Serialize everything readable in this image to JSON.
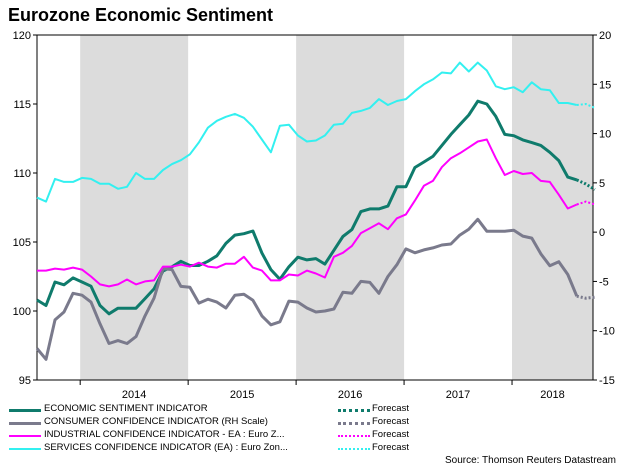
{
  "title": "Eurozone Economic Sentiment",
  "source": "Source: Thomson Reuters Datastream",
  "colors": {
    "esi": "#0f7b6c",
    "consumer": "#7a7a8c",
    "industrial": "#ff00ff",
    "services": "#33f0f0",
    "shade": "#dcdcdc"
  },
  "legend": [
    {
      "label": "ECONOMIC SENTIMENT INDICATOR",
      "forecast": "Forecast"
    },
    {
      "label": "CONSUMER CONFIDENCE INDICATOR (RH Scale)",
      "forecast": "Forecast"
    },
    {
      "label": "INDUSTRIAL CONFIDENCE INDICATOR - EA : Euro Z...",
      "forecast": "Forecast"
    },
    {
      "label": "SERVICES CONFIDENCE INDICATOR (EA) : Euro Zon...",
      "forecast": "Forecast"
    }
  ],
  "chart_data": {
    "type": "line",
    "title": "Eurozone Economic Sentiment",
    "x_start": 2013.6,
    "x_end": 2018.75,
    "years": [
      "2014",
      "2015",
      "2016",
      "2017",
      "2018"
    ],
    "left_axis": {
      "min": 95,
      "max": 120,
      "ticks": [
        "95",
        "100",
        "105",
        "110",
        "115",
        "120"
      ]
    },
    "right_axis": {
      "min": -15,
      "max": 20,
      "ticks": [
        "-15",
        "-10",
        "-5",
        "0",
        "5",
        "10",
        "15",
        "20"
      ]
    },
    "series": [
      {
        "name": "ECONOMIC SENTIMENT INDICATOR",
        "axis": "left",
        "key": "esi",
        "width": 3,
        "values": [
          100.8,
          100.4,
          102.1,
          101.9,
          102.4,
          102.1,
          101.8,
          100.4,
          99.8,
          100.2,
          100.2,
          100.2,
          100.9,
          101.6,
          102.9,
          103.2,
          103.6,
          103.3,
          103.3,
          103.6,
          104.0,
          104.9,
          105.5,
          105.6,
          105.8,
          104.2,
          103.0,
          102.3,
          103.2,
          103.9,
          103.7,
          103.8,
          103.4,
          104.4,
          105.4,
          105.9,
          107.2,
          107.4,
          107.4,
          107.6,
          109.0,
          109.0,
          110.4,
          110.8,
          111.2,
          112.0,
          112.8,
          113.5,
          114.2,
          115.2,
          115.0,
          114.1,
          112.8,
          112.7,
          112.4,
          112.2,
          112.0,
          111.5,
          110.9,
          109.7,
          109.5
        ],
        "forecast": [
          109.5,
          109.2,
          108.8
        ]
      },
      {
        "name": "CONSUMER CONFIDENCE INDICATOR (RH Scale)",
        "axis": "right",
        "key": "consumer",
        "width": 3,
        "values": [
          -11.8,
          -12.9,
          -8.9,
          -8.1,
          -6.2,
          -6.4,
          -7.1,
          -9.3,
          -11.3,
          -11.0,
          -11.3,
          -10.6,
          -8.5,
          -6.7,
          -3.7,
          -3.8,
          -5.5,
          -5.6,
          -7.2,
          -6.8,
          -7.1,
          -7.7,
          -6.4,
          -6.3,
          -6.9,
          -8.5,
          -9.4,
          -9.1,
          -7.0,
          -7.1,
          -7.7,
          -8.1,
          -8.0,
          -7.8,
          -6.1,
          -6.2,
          -5.0,
          -5.1,
          -6.2,
          -4.5,
          -3.3,
          -1.7,
          -2.1,
          -1.8,
          -1.6,
          -1.3,
          -1.2,
          -0.3,
          0.3,
          1.3,
          0.1,
          0.1,
          0.1,
          0.2,
          -0.4,
          -0.6,
          -2.2,
          -3.4,
          -3.0,
          -4.3,
          -6.5
        ],
        "forecast": [
          -6.5,
          -6.7,
          -6.6
        ]
      },
      {
        "name": "INDUSTRIAL CONFIDENCE INDICATOR - EA : Euro Z...",
        "axis": "right",
        "key": "industrial",
        "width": 2,
        "values": [
          -3.9,
          -3.9,
          -3.7,
          -3.8,
          -3.6,
          -3.8,
          -4.5,
          -5.3,
          -5.5,
          -5.3,
          -4.8,
          -5.3,
          -5.0,
          -4.9,
          -3.5,
          -3.5,
          -3.3,
          -3.5,
          -3.1,
          -3.5,
          -3.6,
          -3.2,
          -3.2,
          -2.5,
          -3.6,
          -3.9,
          -4.9,
          -4.9,
          -4.3,
          -4.4,
          -3.9,
          -4.2,
          -4.6,
          -2.5,
          -2.1,
          -1.4,
          -0.1,
          0.4,
          0.9,
          0.3,
          1.4,
          1.8,
          3.2,
          4.7,
          5.2,
          6.6,
          7.5,
          8.0,
          8.6,
          9.2,
          9.4,
          7.5,
          5.8,
          6.2,
          5.9,
          6.0,
          5.2,
          5.1,
          3.8,
          2.4,
          2.8
        ],
        "forecast": [
          2.8,
          3.1,
          2.8
        ]
      },
      {
        "name": "SERVICES CONFIDENCE INDICATOR (EA) : Euro Zon...",
        "axis": "right",
        "key": "services",
        "width": 2,
        "values": [
          3.5,
          3.1,
          5.4,
          5.1,
          5.1,
          5.5,
          5.4,
          4.9,
          4.9,
          4.4,
          4.6,
          6.0,
          5.4,
          5.4,
          6.3,
          6.9,
          7.3,
          7.9,
          9.1,
          10.6,
          11.3,
          11.7,
          12.0,
          11.6,
          10.7,
          9.4,
          8.1,
          10.8,
          10.9,
          9.8,
          9.2,
          9.3,
          9.8,
          10.9,
          11.0,
          12.1,
          12.3,
          12.6,
          13.5,
          12.9,
          13.3,
          13.5,
          14.3,
          15.0,
          15.5,
          16.2,
          16.1,
          17.2,
          16.3,
          17.2,
          16.4,
          14.8,
          14.5,
          14.7,
          14.2,
          15.2,
          14.5,
          14.4,
          13.1,
          13.1,
          12.9
        ],
        "forecast": [
          12.9,
          13.0,
          12.6
        ]
      }
    ]
  }
}
